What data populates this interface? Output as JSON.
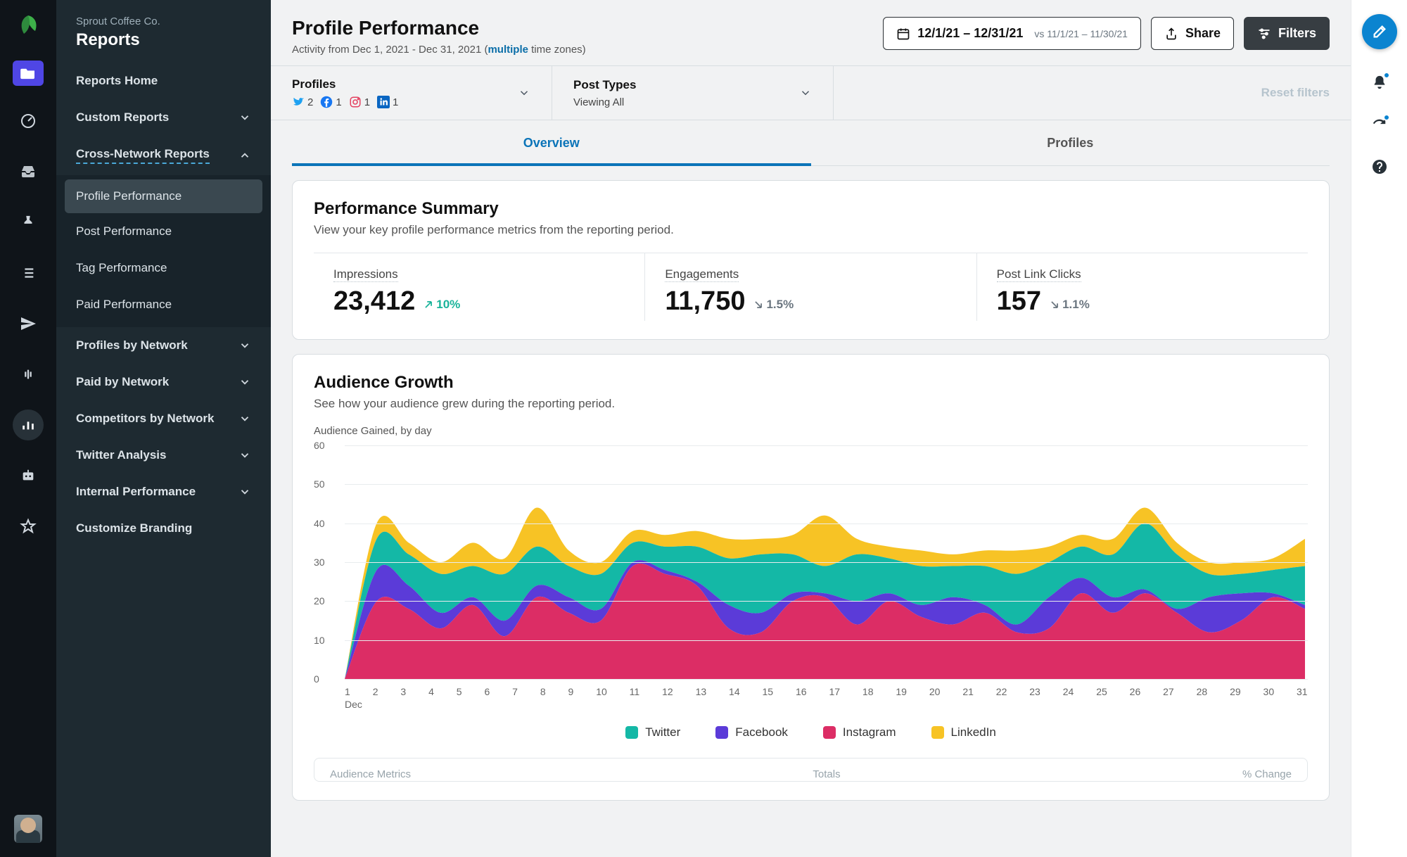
{
  "org": {
    "company": "Sprout Coffee Co.",
    "section": "Reports"
  },
  "nav": {
    "home": "Reports Home",
    "custom": "Custom Reports",
    "cross": "Cross-Network Reports",
    "profile_perf": "Profile Performance",
    "post_perf": "Post Performance",
    "tag_perf": "Tag Performance",
    "paid_perf": "Paid Performance",
    "profiles_net": "Profiles by Network",
    "paid_net": "Paid by Network",
    "competitors_net": "Competitors by Network",
    "twitter": "Twitter Analysis",
    "internal": "Internal Performance",
    "branding": "Customize Branding"
  },
  "header": {
    "title": "Profile Performance",
    "activity_prefix": "Activity from Dec 1, 2021 - Dec 31, 2021 (",
    "activity_link": "multiple",
    "activity_suffix": " time zones)",
    "date_range": "12/1/21 – 12/31/21",
    "date_compare": "vs 11/1/21 – 11/30/21",
    "share": "Share",
    "filters": "Filters"
  },
  "filter_bar": {
    "profiles_label": "Profiles",
    "post_types_label": "Post Types",
    "post_types_value": "Viewing All",
    "reset": "Reset filters",
    "counts": {
      "twitter": "2",
      "facebook": "1",
      "instagram": "1",
      "linkedin": "1"
    },
    "colors": {
      "twitter": "#1DA1F2",
      "facebook": "#1877F2",
      "instagram": "#E4405F",
      "linkedin": "#0A66C2"
    }
  },
  "tabs": {
    "overview": "Overview",
    "profiles": "Profiles"
  },
  "summary": {
    "title": "Performance Summary",
    "desc": "View your key profile performance metrics from the reporting period.",
    "metrics": [
      {
        "label": "Impressions",
        "value": "23,412",
        "delta": "10%",
        "dir": "up"
      },
      {
        "label": "Engagements",
        "value": "11,750",
        "delta": "1.5%",
        "dir": "down"
      },
      {
        "label": "Post Link Clicks",
        "value": "157",
        "delta": "1.1%",
        "dir": "down"
      }
    ]
  },
  "audience": {
    "title": "Audience Growth",
    "desc": "See how your audience grew during the reporting period.",
    "chart_label": "Audience Gained, by day",
    "chart": {
      "type": "stacked-area",
      "ylim": [
        0,
        60
      ],
      "ytick_step": 10,
      "x_labels": [
        "1",
        "2",
        "3",
        "4",
        "5",
        "6",
        "7",
        "8",
        "9",
        "10",
        "11",
        "12",
        "13",
        "14",
        "15",
        "16",
        "17",
        "18",
        "19",
        "20",
        "21",
        "22",
        "23",
        "24",
        "25",
        "26",
        "27",
        "28",
        "29",
        "30",
        "31"
      ],
      "x_month": "Dec",
      "grid_color": "#e8ecee",
      "background_color": "#ffffff",
      "series_order": [
        "instagram",
        "facebook",
        "twitter",
        "linkedin"
      ],
      "series": {
        "instagram": {
          "label": "Instagram",
          "color": "#DC2D65",
          "values": [
            0,
            20,
            18,
            13,
            19,
            11,
            21,
            17,
            15,
            29,
            27,
            24,
            13,
            12,
            20,
            21,
            14,
            20,
            16,
            14,
            17,
            12,
            13,
            22,
            17,
            22,
            17,
            12,
            15,
            21,
            18
          ]
        },
        "facebook": {
          "label": "Facebook",
          "color": "#5B3BD8",
          "values": [
            0,
            8,
            6,
            4,
            2,
            4,
            3,
            4,
            3,
            1,
            1,
            1,
            6,
            5,
            2,
            1,
            6,
            2,
            3,
            7,
            2,
            2,
            8,
            4,
            4,
            1,
            1,
            9,
            7,
            1,
            1
          ]
        },
        "twitter": {
          "label": "Twitter",
          "color": "#14B8A6",
          "values": [
            0,
            8,
            8,
            10,
            8,
            12,
            10,
            8,
            9,
            5,
            6,
            9,
            12,
            15,
            10,
            7,
            12,
            9,
            10,
            8,
            10,
            13,
            9,
            8,
            11,
            17,
            14,
            6,
            5,
            6,
            10
          ]
        },
        "linkedin": {
          "label": "LinkedIn",
          "color": "#F7C325",
          "values": [
            0,
            4,
            3,
            3,
            6,
            4,
            10,
            4,
            3,
            3,
            3,
            4,
            5,
            4,
            5,
            13,
            4,
            3,
            4,
            3,
            4,
            6,
            4,
            3,
            4,
            4,
            3,
            3,
            3,
            3,
            7
          ]
        }
      }
    },
    "legend_order": [
      "twitter",
      "facebook",
      "instagram",
      "linkedin"
    ]
  },
  "table_stub": {
    "left": "Audience Metrics",
    "mid": "Totals",
    "right": "% Change"
  }
}
